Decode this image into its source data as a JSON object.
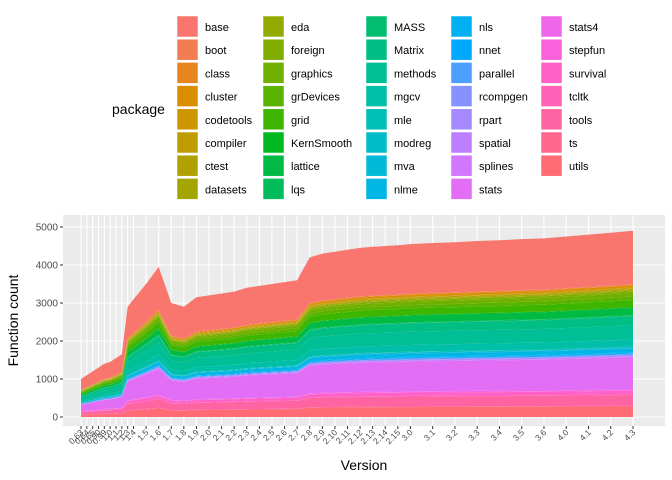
{
  "chart_data": {
    "type": "area",
    "xlabel": "Version",
    "ylabel": "Function count",
    "ylim": [
      0,
      5000
    ],
    "y_ticks": [
      0,
      1000,
      2000,
      3000,
      4000,
      5000
    ],
    "grid": true,
    "stacked": true,
    "legend_title": "package",
    "legend_placement": "top",
    "x_tick_labels": [
      "0.63",
      "0.64",
      "0.65",
      "0.90",
      "0.99",
      "1.0",
      "1.1",
      "1.2",
      "1.3",
      "1.4",
      "1.5",
      "1.6",
      "1.7",
      "1.8",
      "1.9",
      "2.0",
      "2.1",
      "2.2",
      "2.3",
      "2.4",
      "2.5",
      "2.6",
      "2.7",
      "2.8",
      "2.9",
      "2.10",
      "2.11",
      "2.12",
      "2.13",
      "2.14",
      "2.15",
      "3.0",
      "3.1",
      "3.2",
      "3.3",
      "3.4",
      "3.5",
      "3.6",
      "4.0",
      "4.1",
      "4.2",
      "4.3"
    ],
    "x_positions": [
      0.63,
      0.64,
      0.65,
      0.9,
      0.99,
      1.0,
      1.1,
      1.2,
      1.3,
      1.4,
      1.5,
      1.6,
      1.7,
      1.8,
      1.9,
      2.0,
      2.1,
      2.2,
      2.3,
      2.4,
      2.5,
      2.6,
      2.7,
      2.8,
      2.9,
      2.1,
      2.11,
      2.12,
      2.13,
      2.14,
      2.15,
      3.0,
      3.1,
      3.2,
      3.3,
      3.4,
      3.5,
      3.6,
      4.0,
      4.1,
      4.2,
      4.3
    ],
    "total_function_count": {
      "version_index": [
        0,
        1,
        2,
        3,
        4,
        5,
        6,
        7,
        8,
        9,
        10,
        11,
        12,
        13,
        14,
        15,
        16,
        17,
        18,
        19,
        20,
        21,
        22,
        23,
        24,
        25,
        26,
        27,
        28,
        29,
        30,
        31,
        32,
        33,
        34,
        35,
        36,
        37,
        38,
        39,
        40,
        41
      ],
      "values": [
        1000,
        1100,
        1200,
        1300,
        1400,
        1450,
        1550,
        1650,
        2900,
        3100,
        3500,
        3950,
        3000,
        2900,
        3150,
        3200,
        3250,
        3300,
        3400,
        3450,
        3500,
        3550,
        3600,
        4200,
        4300,
        4350,
        4400,
        4450,
        4480,
        4500,
        4520,
        4550,
        4580,
        4600,
        4630,
        4650,
        4680,
        4700,
        4750,
        4800,
        4850,
        4900
      ]
    },
    "series": [
      {
        "name": "base",
        "color": "#F8766D"
      },
      {
        "name": "boot",
        "color": "#F27D52"
      },
      {
        "name": "class",
        "color": "#E7851E"
      },
      {
        "name": "cluster",
        "color": "#DB8E00"
      },
      {
        "name": "codetools",
        "color": "#CD9600"
      },
      {
        "name": "compiler",
        "color": "#BF9C00"
      },
      {
        "name": "ctest",
        "color": "#B0A100"
      },
      {
        "name": "datasets",
        "color": "#A3A500"
      },
      {
        "name": "eda",
        "color": "#93AA00"
      },
      {
        "name": "foreign",
        "color": "#82AD00"
      },
      {
        "name": "graphics",
        "color": "#70B000"
      },
      {
        "name": "grDevices",
        "color": "#5BB300"
      },
      {
        "name": "grid",
        "color": "#3DB600"
      },
      {
        "name": "KernSmooth",
        "color": "#00B81F"
      },
      {
        "name": "lattice",
        "color": "#00BA43"
      },
      {
        "name": "lqs",
        "color": "#00BC5A"
      },
      {
        "name": "MASS",
        "color": "#00BD70"
      },
      {
        "name": "Matrix",
        "color": "#00BE84"
      },
      {
        "name": "methods",
        "color": "#00BF96"
      },
      {
        "name": "mgcv",
        "color": "#00BFA8"
      },
      {
        "name": "mle",
        "color": "#00BFB9"
      },
      {
        "name": "modreg",
        "color": "#00BDC8"
      },
      {
        "name": "mva",
        "color": "#00BAD7"
      },
      {
        "name": "nlme",
        "color": "#00B6E4"
      },
      {
        "name": "nls",
        "color": "#00B0F0"
      },
      {
        "name": "nnet",
        "color": "#00A8FF"
      },
      {
        "name": "parallel",
        "color": "#4C9EFF"
      },
      {
        "name": "rcompgen",
        "color": "#8592FF"
      },
      {
        "name": "rpart",
        "color": "#A58AFF"
      },
      {
        "name": "spatial",
        "color": "#BD7EFF"
      },
      {
        "name": "splines",
        "color": "#D277FF"
      },
      {
        "name": "stats",
        "color": "#E36EF6"
      },
      {
        "name": "stats4",
        "color": "#F066EA"
      },
      {
        "name": "stepfun",
        "color": "#FA62DB"
      },
      {
        "name": "survival",
        "color": "#FF61C9"
      },
      {
        "name": "tcltk",
        "color": "#FF62B6"
      },
      {
        "name": "tools",
        "color": "#FF64A2"
      },
      {
        "name": "ts",
        "color": "#FF678C"
      },
      {
        "name": "utils",
        "color": "#FF6A75"
      }
    ],
    "colors": {
      "panel_background": "#EBEBEB",
      "grid_major": "#FFFFFF",
      "grid_minor": "#F2F2F2"
    }
  }
}
